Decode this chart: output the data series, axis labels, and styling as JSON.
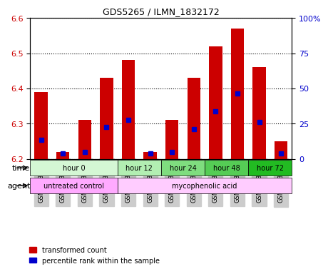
{
  "title": "GDS5265 / ILMN_1832172",
  "samples": [
    "GSM1133722",
    "GSM1133723",
    "GSM1133724",
    "GSM1133725",
    "GSM1133726",
    "GSM1133727",
    "GSM1133728",
    "GSM1133729",
    "GSM1133730",
    "GSM1133731",
    "GSM1133732",
    "GSM1133733"
  ],
  "bar_heights": [
    6.39,
    6.22,
    6.31,
    6.43,
    6.48,
    6.22,
    6.31,
    6.43,
    6.52,
    6.57,
    6.46,
    6.25
  ],
  "blue_positions": [
    6.255,
    6.215,
    6.22,
    6.29,
    6.31,
    6.215,
    6.22,
    6.285,
    6.335,
    6.385,
    6.305,
    6.215
  ],
  "ylim_left": [
    6.2,
    6.6
  ],
  "ylim_right": [
    0,
    100
  ],
  "yticks_left": [
    6.2,
    6.3,
    6.4,
    6.5,
    6.6
  ],
  "yticks_right": [
    0,
    25,
    50,
    75,
    100
  ],
  "ytick_labels_right": [
    "0",
    "25",
    "50",
    "75",
    "100%"
  ],
  "bar_color": "#cc0000",
  "blue_color": "#0000cc",
  "bar_width": 0.6,
  "time_groups": [
    {
      "label": "hour 0",
      "start": 0,
      "end": 3,
      "color": "#ccffcc"
    },
    {
      "label": "hour 12",
      "start": 4,
      "end": 5,
      "color": "#99ee99"
    },
    {
      "label": "hour 24",
      "start": 6,
      "end": 7,
      "color": "#66dd66"
    },
    {
      "label": "hour 48",
      "start": 8,
      "end": 9,
      "color": "#44cc44"
    },
    {
      "label": "hour 72",
      "start": 10,
      "end": 11,
      "color": "#22bb22"
    }
  ],
  "agent_groups": [
    {
      "label": "untreated control",
      "start": 0,
      "end": 3,
      "color": "#ee88ee"
    },
    {
      "label": "mycophenolic acid",
      "start": 4,
      "end": 11,
      "color": "#ddaadd"
    }
  ],
  "time_row_color_light": "#e6ffe6",
  "time_row_color_dark": "#99dd99",
  "agent_row_color": "#ffaaff",
  "grid_color": "black",
  "grid_linestyle": "dotted",
  "xlabel_color": "#333333",
  "ylabel_left_color": "#cc0000",
  "ylabel_right_color": "#0000cc",
  "sample_bg_color": "#cccccc",
  "legend_red_label": "transformed count",
  "legend_blue_label": "percentile rank within the sample",
  "time_label": "time",
  "agent_label": "agent"
}
